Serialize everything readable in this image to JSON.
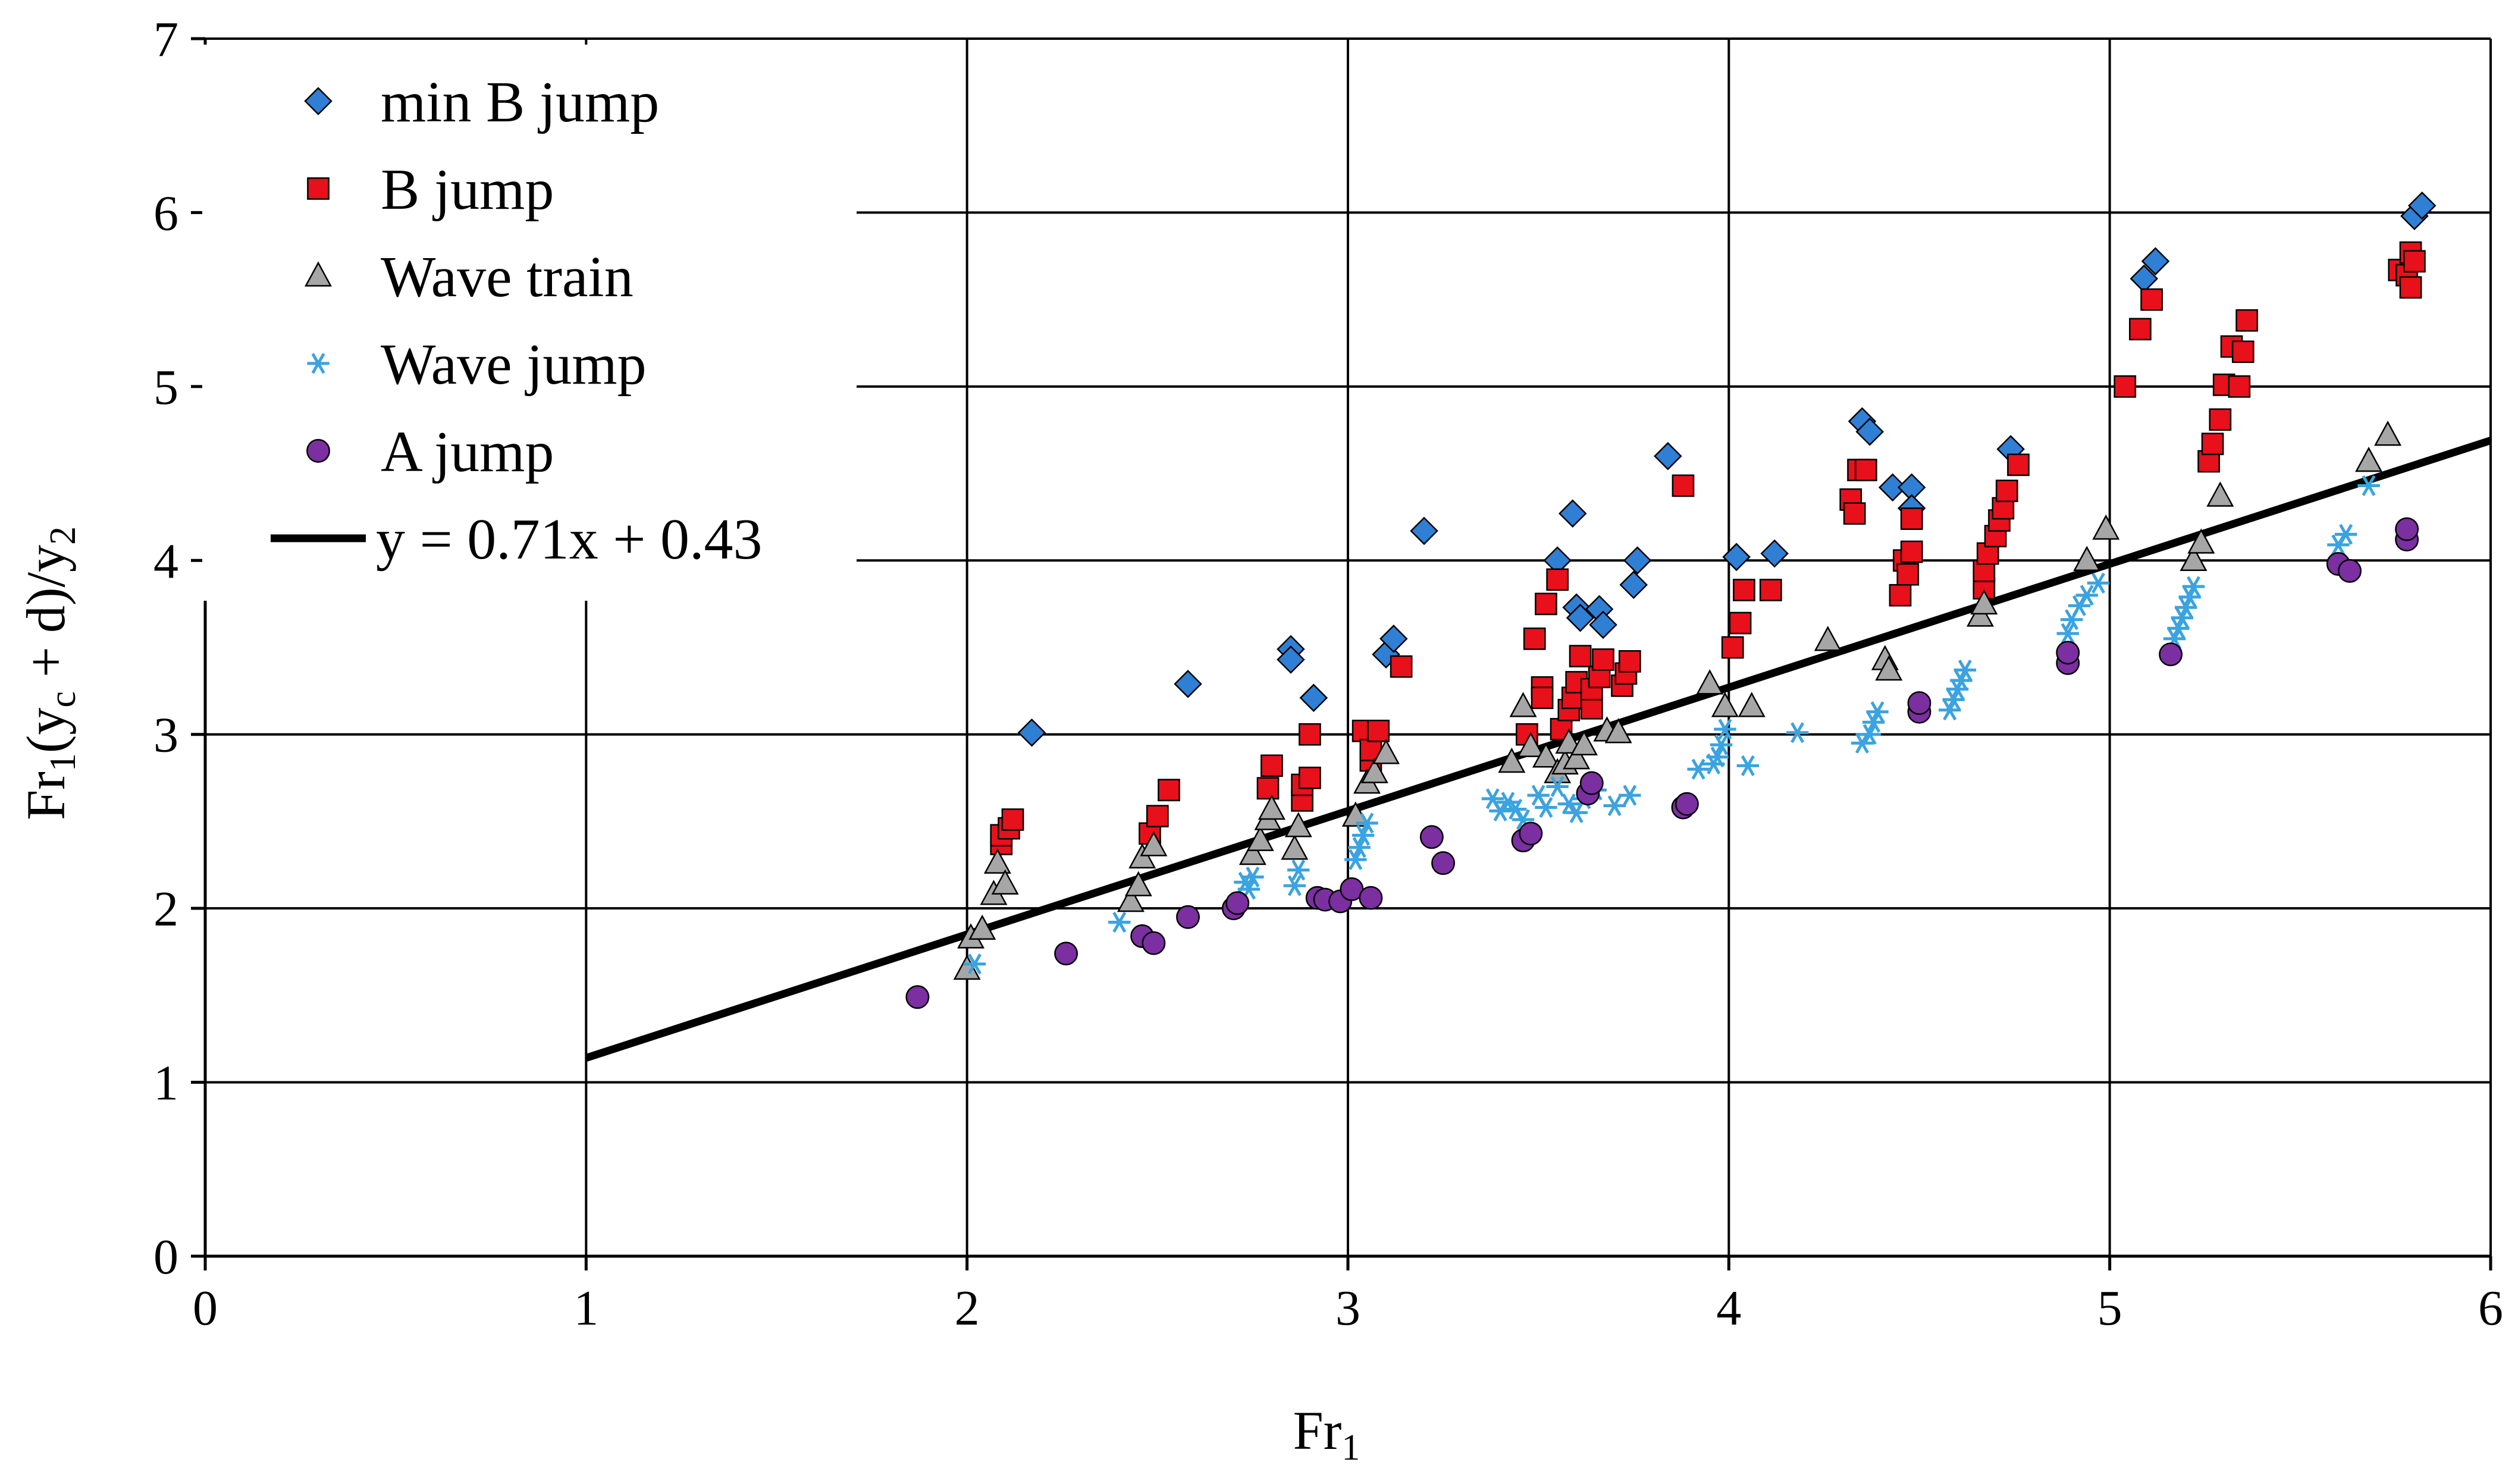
{
  "chart_data": {
    "type": "scatter",
    "title": "",
    "xlabel": "Fr",
    "xlabel_sub": "1",
    "ylabel_parts": [
      "Fr",
      "1",
      "(y",
      "c",
      " + d)/y",
      "2"
    ],
    "xlim": [
      0,
      6
    ],
    "ylim": [
      0,
      7
    ],
    "xticks": [
      "0",
      "1",
      "2",
      "3",
      "4",
      "5",
      "6"
    ],
    "yticks": [
      "0",
      "1",
      "2",
      "3",
      "4",
      "5",
      "6",
      "7"
    ],
    "grid": true,
    "legend_position": "top-left",
    "fit_line": {
      "label": "y = 0.71x + 0.43",
      "slope": 0.71,
      "intercept": 0.43,
      "x_range": [
        1,
        6
      ],
      "color": "#000000"
    },
    "series": [
      {
        "name": "min B jump",
        "marker": "diamond",
        "color": "#2f7fd4",
        "points": [
          [
            2.17,
            3.01
          ],
          [
            2.58,
            3.29
          ],
          [
            2.85,
            3.49
          ],
          [
            2.85,
            3.43
          ],
          [
            2.91,
            3.21
          ],
          [
            3.1,
            3.46
          ],
          [
            3.12,
            3.55
          ],
          [
            3.2,
            4.17
          ],
          [
            3.55,
            4.0
          ],
          [
            3.59,
            4.27
          ],
          [
            3.6,
            3.73
          ],
          [
            3.61,
            3.67
          ],
          [
            3.66,
            3.72
          ],
          [
            3.67,
            3.63
          ],
          [
            3.75,
            3.86
          ],
          [
            3.76,
            4.0
          ],
          [
            3.84,
            4.6
          ],
          [
            4.02,
            4.02
          ],
          [
            4.12,
            4.04
          ],
          [
            4.35,
            4.8
          ],
          [
            4.37,
            4.74
          ],
          [
            4.43,
            4.42
          ],
          [
            4.48,
            4.42
          ],
          [
            4.48,
            4.3
          ],
          [
            4.74,
            4.64
          ],
          [
            5.09,
            5.62
          ],
          [
            5.12,
            5.72
          ],
          [
            5.8,
            5.98
          ],
          [
            5.82,
            6.04
          ]
        ]
      },
      {
        "name": "B jump",
        "marker": "square",
        "color": "#e8101a",
        "points": [
          [
            2.09,
            2.37
          ],
          [
            2.09,
            2.42
          ],
          [
            2.11,
            2.46
          ],
          [
            2.12,
            2.51
          ],
          [
            2.48,
            2.43
          ],
          [
            2.5,
            2.53
          ],
          [
            2.53,
            2.68
          ],
          [
            2.79,
            2.69
          ],
          [
            2.8,
            2.82
          ],
          [
            2.88,
            2.62
          ],
          [
            2.88,
            2.71
          ],
          [
            2.9,
            3.0
          ],
          [
            2.9,
            2.75
          ],
          [
            3.04,
            3.02
          ],
          [
            3.06,
            2.85
          ],
          [
            3.06,
            2.91
          ],
          [
            3.08,
            3.02
          ],
          [
            3.14,
            3.39
          ],
          [
            3.47,
            3.0
          ],
          [
            3.49,
            3.55
          ],
          [
            3.51,
            3.27
          ],
          [
            3.51,
            3.21
          ],
          [
            3.52,
            3.75
          ],
          [
            3.55,
            3.89
          ],
          [
            3.56,
            3.03
          ],
          [
            3.58,
            3.14
          ],
          [
            3.59,
            3.21
          ],
          [
            3.6,
            3.3
          ],
          [
            3.61,
            3.45
          ],
          [
            3.64,
            3.15
          ],
          [
            3.64,
            3.26
          ],
          [
            3.66,
            3.33
          ],
          [
            3.67,
            3.43
          ],
          [
            3.72,
            3.28
          ],
          [
            3.73,
            3.35
          ],
          [
            3.74,
            3.42
          ],
          [
            3.88,
            4.43
          ],
          [
            4.01,
            3.5
          ],
          [
            4.03,
            3.64
          ],
          [
            4.04,
            3.83
          ],
          [
            4.11,
            3.83
          ],
          [
            4.32,
            4.35
          ],
          [
            4.33,
            4.27
          ],
          [
            4.34,
            4.52
          ],
          [
            4.36,
            4.52
          ],
          [
            4.45,
            3.8
          ],
          [
            4.46,
            4.0
          ],
          [
            4.47,
            3.92
          ],
          [
            4.48,
            4.05
          ],
          [
            4.48,
            4.24
          ],
          [
            4.67,
            3.84
          ],
          [
            4.67,
            3.94
          ],
          [
            4.68,
            4.04
          ],
          [
            4.7,
            4.14
          ],
          [
            4.71,
            4.23
          ],
          [
            4.72,
            4.3
          ],
          [
            4.73,
            4.4
          ],
          [
            4.76,
            4.55
          ],
          [
            5.04,
            5.0
          ],
          [
            5.08,
            5.33
          ],
          [
            5.11,
            5.5
          ],
          [
            5.26,
            4.57
          ],
          [
            5.27,
            4.67
          ],
          [
            5.29,
            4.81
          ],
          [
            5.3,
            5.01
          ],
          [
            5.32,
            5.23
          ],
          [
            5.34,
            5.0
          ],
          [
            5.35,
            5.2
          ],
          [
            5.36,
            5.38
          ],
          [
            5.76,
            5.67
          ],
          [
            5.78,
            5.64
          ],
          [
            5.79,
            5.77
          ],
          [
            5.79,
            5.57
          ],
          [
            5.8,
            5.72
          ]
        ]
      },
      {
        "name": "Wave train",
        "marker": "triangle",
        "color": "#a6a6a6",
        "points": [
          [
            2.0,
            1.65
          ],
          [
            2.01,
            1.83
          ],
          [
            2.04,
            1.88
          ],
          [
            2.07,
            2.08
          ],
          [
            2.08,
            2.26
          ],
          [
            2.1,
            2.14
          ],
          [
            2.43,
            2.04
          ],
          [
            2.45,
            2.13
          ],
          [
            2.46,
            2.29
          ],
          [
            2.49,
            2.36
          ],
          [
            2.75,
            2.31
          ],
          [
            2.77,
            2.39
          ],
          [
            2.79,
            2.51
          ],
          [
            2.8,
            2.57
          ],
          [
            2.86,
            2.34
          ],
          [
            2.87,
            2.47
          ],
          [
            3.02,
            2.53
          ],
          [
            3.05,
            2.72
          ],
          [
            3.07,
            2.78
          ],
          [
            3.1,
            2.89
          ],
          [
            3.43,
            2.84
          ],
          [
            3.46,
            3.16
          ],
          [
            3.48,
            2.93
          ],
          [
            3.52,
            2.87
          ],
          [
            3.55,
            2.78
          ],
          [
            3.57,
            2.83
          ],
          [
            3.58,
            2.95
          ],
          [
            3.6,
            2.86
          ],
          [
            3.62,
            2.94
          ],
          [
            3.68,
            3.02
          ],
          [
            3.71,
            3.01
          ],
          [
            3.95,
            3.29
          ],
          [
            3.99,
            3.16
          ],
          [
            4.06,
            3.16
          ],
          [
            4.26,
            3.54
          ],
          [
            4.41,
            3.43
          ],
          [
            4.42,
            3.37
          ],
          [
            4.66,
            3.68
          ],
          [
            4.67,
            3.75
          ],
          [
            4.94,
            4.0
          ],
          [
            4.99,
            4.18
          ],
          [
            5.22,
            4.0
          ],
          [
            5.24,
            4.1
          ],
          [
            5.29,
            4.37
          ],
          [
            5.68,
            4.57
          ],
          [
            5.73,
            4.72
          ]
        ]
      },
      {
        "name": "Wave jump",
        "marker": "asterisk",
        "color": "#3aa3e0",
        "points": [
          [
            2.02,
            1.68
          ],
          [
            2.4,
            1.92
          ],
          [
            2.73,
            2.15
          ],
          [
            2.74,
            2.11
          ],
          [
            2.75,
            2.18
          ],
          [
            2.86,
            2.13
          ],
          [
            2.87,
            2.22
          ],
          [
            3.02,
            2.28
          ],
          [
            3.03,
            2.35
          ],
          [
            3.04,
            2.42
          ],
          [
            3.05,
            2.49
          ],
          [
            3.38,
            2.63
          ],
          [
            3.4,
            2.56
          ],
          [
            3.42,
            2.61
          ],
          [
            3.44,
            2.57
          ],
          [
            3.46,
            2.51
          ],
          [
            3.5,
            2.65
          ],
          [
            3.52,
            2.58
          ],
          [
            3.55,
            2.7
          ],
          [
            3.58,
            2.6
          ],
          [
            3.6,
            2.55
          ],
          [
            3.62,
            2.63
          ],
          [
            3.65,
            2.68
          ],
          [
            3.7,
            2.59
          ],
          [
            3.74,
            2.65
          ],
          [
            3.92,
            2.8
          ],
          [
            3.96,
            2.83
          ],
          [
            3.97,
            2.87
          ],
          [
            3.98,
            2.94
          ],
          [
            3.99,
            3.03
          ],
          [
            4.05,
            2.82
          ],
          [
            4.18,
            3.01
          ],
          [
            4.35,
            2.95
          ],
          [
            4.37,
            3.0
          ],
          [
            4.38,
            3.07
          ],
          [
            4.39,
            3.13
          ],
          [
            4.58,
            3.14
          ],
          [
            4.59,
            3.2
          ],
          [
            4.6,
            3.26
          ],
          [
            4.61,
            3.31
          ],
          [
            4.62,
            3.37
          ],
          [
            4.89,
            3.58
          ],
          [
            4.9,
            3.66
          ],
          [
            4.92,
            3.74
          ],
          [
            4.94,
            3.8
          ],
          [
            4.97,
            3.87
          ],
          [
            5.17,
            3.55
          ],
          [
            5.18,
            3.61
          ],
          [
            5.19,
            3.67
          ],
          [
            5.2,
            3.73
          ],
          [
            5.21,
            3.79
          ],
          [
            5.22,
            3.85
          ],
          [
            5.6,
            4.09
          ],
          [
            5.62,
            4.15
          ],
          [
            5.68,
            4.43
          ]
        ]
      },
      {
        "name": "A jump",
        "marker": "circle",
        "color": "#7b2fa0",
        "points": [
          [
            1.87,
            1.49
          ],
          [
            2.26,
            1.74
          ],
          [
            2.46,
            1.84
          ],
          [
            2.49,
            1.8
          ],
          [
            2.58,
            1.95
          ],
          [
            2.7,
            2.0
          ],
          [
            2.71,
            2.03
          ],
          [
            2.92,
            2.06
          ],
          [
            2.94,
            2.05
          ],
          [
            2.98,
            2.04
          ],
          [
            3.01,
            2.11
          ],
          [
            3.06,
            2.06
          ],
          [
            3.22,
            2.41
          ],
          [
            3.25,
            2.26
          ],
          [
            3.46,
            2.39
          ],
          [
            3.48,
            2.43
          ],
          [
            3.63,
            2.66
          ],
          [
            3.64,
            2.72
          ],
          [
            3.88,
            2.58
          ],
          [
            3.89,
            2.6
          ],
          [
            4.5,
            3.13
          ],
          [
            4.5,
            3.18
          ],
          [
            4.89,
            3.41
          ],
          [
            4.89,
            3.47
          ],
          [
            5.16,
            3.46
          ],
          [
            5.6,
            3.98
          ],
          [
            5.63,
            3.94
          ],
          [
            5.78,
            4.12
          ],
          [
            5.78,
            4.18
          ]
        ]
      }
    ]
  }
}
